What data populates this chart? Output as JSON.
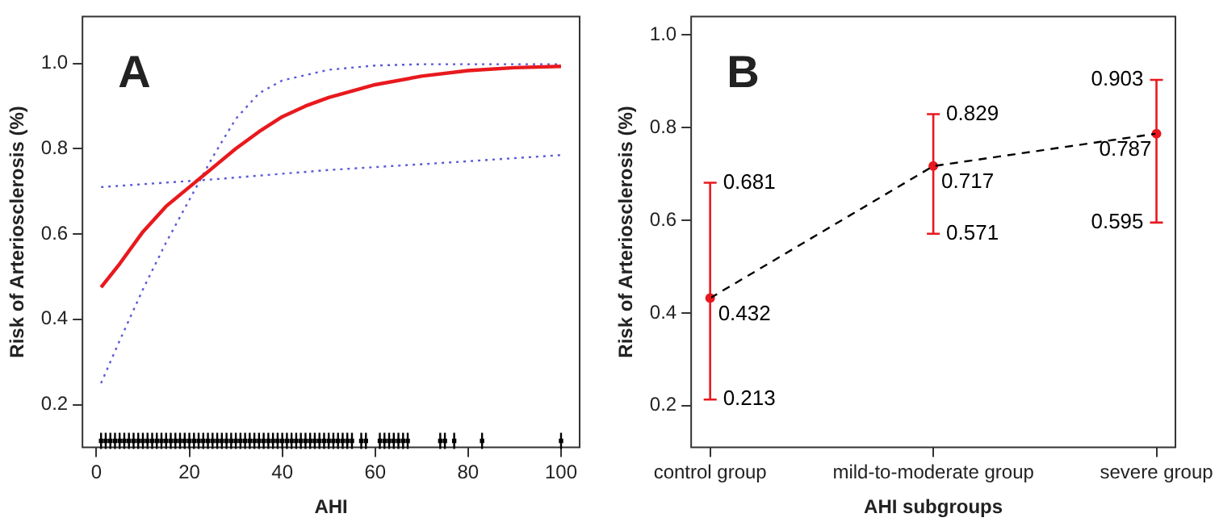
{
  "chart_data": [
    {
      "type": "line",
      "title": "A",
      "xlabel": "AHI",
      "ylabel": "Risk of Arteriosclerosis (%)",
      "xlim": [
        -3,
        104
      ],
      "xticks": [
        0,
        20,
        40,
        60,
        80,
        100
      ],
      "ylim": [
        0.1,
        1.11
      ],
      "yticks": [
        0.2,
        0.4,
        0.6,
        0.8,
        {
          "value": 1,
          "label": "1.0"
        }
      ],
      "grid": false,
      "legend": false,
      "series": [
        {
          "color": "#e8191e",
          "line_style": "solid",
          "marker": "none",
          "x": [
            1,
            5,
            10,
            15,
            20,
            25,
            30,
            35,
            40,
            45,
            50,
            60,
            70,
            80,
            90,
            100
          ],
          "values": [
            0.475,
            0.53,
            0.605,
            0.665,
            0.71,
            0.755,
            0.8,
            0.84,
            0.875,
            0.9,
            0.92,
            0.95,
            0.97,
            0.983,
            0.99,
            0.993
          ]
        },
        {
          "color": "#5b5bd6",
          "line_style": "dotted",
          "marker": "none",
          "x": [
            1,
            5,
            10,
            15,
            20,
            25,
            30,
            35,
            40,
            50,
            60,
            70,
            100
          ],
          "values": [
            0.25,
            0.35,
            0.47,
            0.58,
            0.68,
            0.78,
            0.87,
            0.93,
            0.96,
            0.985,
            0.995,
            0.998,
            0.998
          ]
        },
        {
          "color": "#5b5bd6",
          "line_style": "dotted",
          "marker": "none",
          "x": [
            1,
            25,
            50,
            75,
            100
          ],
          "values": [
            0.71,
            0.728,
            0.75,
            0.767,
            0.785
          ]
        },
        {
          "type": "scatter",
          "color": "#000000",
          "x": [
            1,
            2,
            3,
            4,
            5,
            6,
            7,
            8,
            9,
            10,
            11,
            12,
            13,
            14,
            15,
            16,
            17,
            18,
            19,
            20,
            21,
            22,
            23,
            24,
            25,
            26,
            27,
            28,
            29,
            30,
            31,
            32,
            33,
            34,
            35,
            36,
            37,
            38,
            39,
            40,
            41,
            42,
            43,
            44,
            45,
            46,
            47,
            48,
            49,
            50,
            51,
            52,
            53,
            54,
            55,
            57,
            58,
            61,
            62,
            63,
            64,
            65,
            66,
            67,
            74,
            75,
            77,
            83,
            100
          ],
          "values": [
            0.115,
            0.115,
            0.115,
            0.115,
            0.115,
            0.115,
            0.115,
            0.115,
            0.115,
            0.115,
            0.115,
            0.115,
            0.115,
            0.115,
            0.115,
            0.115,
            0.115,
            0.115,
            0.115,
            0.115,
            0.115,
            0.115,
            0.115,
            0.115,
            0.115,
            0.115,
            0.115,
            0.115,
            0.115,
            0.115,
            0.115,
            0.115,
            0.115,
            0.115,
            0.115,
            0.115,
            0.115,
            0.115,
            0.115,
            0.115,
            0.115,
            0.115,
            0.115,
            0.115,
            0.115,
            0.115,
            0.115,
            0.115,
            0.115,
            0.115,
            0.115,
            0.115,
            0.115,
            0.115,
            0.115,
            0.115,
            0.115,
            0.115,
            0.115,
            0.115,
            0.115,
            0.115,
            0.115,
            0.115,
            0.115,
            0.115,
            0.115,
            0.115,
            0.115
          ]
        }
      ]
    },
    {
      "type": "line",
      "title": "B",
      "xlabel": "AHI subgroups",
      "ylabel": "Risk of Arteriosclerosis (%)",
      "categories": [
        "control group",
        "mild-to-moderate group",
        "severe group"
      ],
      "ylim": [
        0.11,
        1.04
      ],
      "yticks": [
        0.2,
        0.4,
        0.6,
        0.8,
        {
          "value": 1,
          "label": "1.0"
        }
      ],
      "grid": false,
      "legend": false,
      "series": [
        {
          "color": "#000000",
          "line_style": "dashed",
          "marker": "none",
          "values": [
            0.432,
            0.717,
            0.787
          ]
        },
        {
          "type": "scatter",
          "color": "#e8191e",
          "marker": "circle",
          "values": [
            0.432,
            0.717,
            0.787
          ],
          "errors": [
            [
              0.213,
              0.681
            ],
            [
              0.571,
              0.829
            ],
            [
              0.595,
              0.903
            ]
          ],
          "value_labels": [
            "0.432",
            "0.717",
            "0.787"
          ]
        }
      ],
      "annotations": [
        {
          "text": "0.681",
          "x": "control group",
          "y": 0.681
        },
        {
          "text": "0.213",
          "x": "control group",
          "y": 0.213
        },
        {
          "text": "0.829",
          "x": "mild-to-moderate group",
          "y": 0.829
        },
        {
          "text": "0.571",
          "x": "mild-to-moderate group",
          "y": 0.571
        },
        {
          "text": "0.903",
          "x": "severe group",
          "y": 0.903
        },
        {
          "text": "0.595",
          "x": "severe group",
          "y": 0.595
        }
      ]
    }
  ]
}
